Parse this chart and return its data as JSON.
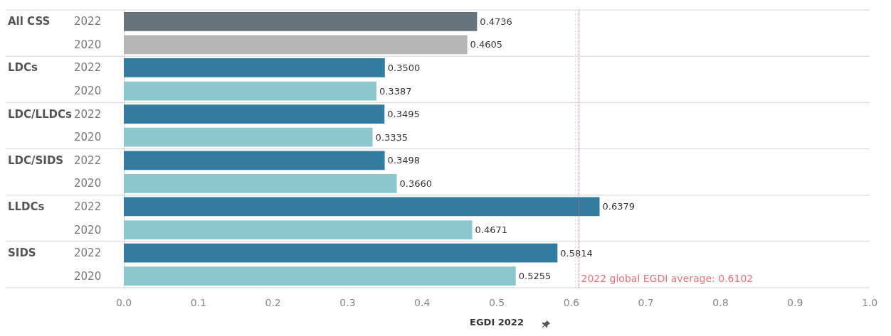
{
  "chart_data": {
    "type": "bar",
    "orientation": "horizontal",
    "xlabel": "EGDI 2022",
    "categories": [
      "2022",
      "2020",
      "2022",
      "2020",
      "2022",
      "2020",
      "2022",
      "2020",
      "2022",
      "2020",
      "2022",
      "2020"
    ],
    "values": [
      0.4736,
      0.4605,
      0.35,
      0.3387,
      0.3495,
      0.3335,
      0.3498,
      0.366,
      0.6379,
      0.4671,
      0.5814,
      0.5255
    ],
    "value_labels": [
      "0.4736",
      "0.4605",
      "0.3500",
      "0.3387",
      "0.3495",
      "0.3335",
      "0.3498",
      "0.3660",
      "0.6379",
      "0.4671",
      "0.5814",
      "0.5255"
    ],
    "colors": [
      "#67737d",
      "#b3b5b6",
      "#337ca0",
      "#8bc7cd",
      "#337ca0",
      "#8bc7cd",
      "#337ca0",
      "#8bc7cd",
      "#337ca0",
      "#8bc7cd",
      "#337ca0",
      "#8bc7cd"
    ],
    "annotations": [
      "All CSS",
      "LDCs",
      "LDC/LLDCs",
      "LDC/SIDS",
      "LLDCs",
      "SIDS"
    ],
    "ref_lines": [
      {
        "axis": "x",
        "value": 0.6102,
        "label": "2022 global EGDI average: 0.6102",
        "color": "#e8707a",
        "line_style": "dotted"
      }
    ],
    "xlim": [
      0,
      1
    ],
    "xticks": [
      {
        "value": 0,
        "label": "0.0"
      },
      {
        "value": 0.1,
        "label": "0.1"
      },
      {
        "value": 0.2,
        "label": "0.2"
      },
      {
        "value": 0.3,
        "label": "0.3"
      },
      {
        "value": 0.4,
        "label": "0.4"
      },
      {
        "value": 0.5,
        "label": "0.5"
      },
      {
        "value": 0.6,
        "label": "0.6"
      },
      {
        "value": 0.7,
        "label": "0.7"
      },
      {
        "value": 0.8,
        "label": "0.8"
      },
      {
        "value": 0.9,
        "label": "0.9"
      },
      {
        "value": 1,
        "label": "1.0"
      }
    ],
    "grid": false
  }
}
